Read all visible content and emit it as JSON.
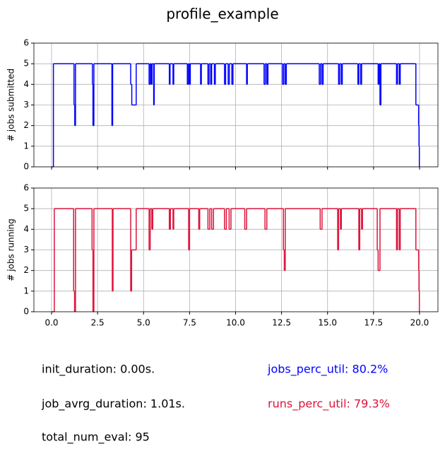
{
  "title": "profile_example",
  "chart_data": [
    {
      "type": "step",
      "ylabel": "# jobs submitted",
      "xlim": [
        -0.96,
        21.0
      ],
      "ylim": [
        0,
        6
      ],
      "xticks": [
        0,
        2.5,
        5,
        7.5,
        10,
        12.5,
        15,
        17.5,
        20
      ],
      "xtick_labels": false,
      "yticks": [
        0,
        1,
        2,
        3,
        4,
        5,
        6
      ],
      "grid": true,
      "color": "#0000ff",
      "x": [
        0,
        0.1,
        1.22,
        1.26,
        1.3,
        2.22,
        2.25,
        2.3,
        3.28,
        3.32,
        4.3,
        4.36,
        4.6,
        5.3,
        5.36,
        5.42,
        5.46,
        5.55,
        5.58,
        6.4,
        6.44,
        6.6,
        6.64,
        7.38,
        7.44,
        7.5,
        7.54,
        8.1,
        8.14,
        8.5,
        8.56,
        8.65,
        8.7,
        8.85,
        8.9,
        9.4,
        9.46,
        9.6,
        9.66,
        9.8,
        9.86,
        10.6,
        10.64,
        11.55,
        11.62,
        11.7,
        11.76,
        12.55,
        12.62,
        12.7,
        12.76,
        14.55,
        14.62,
        14.7,
        14.76,
        15.6,
        15.66,
        15.75,
        15.8,
        16.65,
        16.7,
        16.8,
        16.85,
        17.75,
        17.8,
        17.85,
        17.9,
        18.75,
        18.8,
        18.9,
        18.95,
        19.8,
        19.95,
        19.97,
        19.99,
        20.0
      ],
      "values": [
        0,
        5,
        3,
        2,
        5,
        4,
        2,
        5,
        2,
        5,
        4,
        3,
        5,
        4,
        5,
        4,
        5,
        3,
        5,
        4,
        5,
        4,
        5,
        4,
        5,
        4,
        5,
        4,
        5,
        4,
        5,
        4,
        5,
        4,
        5,
        4,
        5,
        4,
        5,
        4,
        5,
        4,
        5,
        4,
        5,
        4,
        5,
        4,
        5,
        4,
        5,
        4,
        5,
        4,
        5,
        4,
        5,
        4,
        5,
        4,
        5,
        4,
        5,
        4,
        5,
        3,
        5,
        4,
        5,
        4,
        5,
        3,
        2,
        1,
        0,
        0
      ]
    },
    {
      "type": "step",
      "ylabel": "# jobs running",
      "xlim": [
        -0.96,
        21.0
      ],
      "ylim": [
        0,
        6
      ],
      "xticks": [
        {
          "value": 0,
          "label": "0.0"
        },
        2.5,
        {
          "value": 5,
          "label": "5.0"
        },
        7.5,
        {
          "value": 10,
          "label": "10.0"
        },
        12.5,
        {
          "value": 15,
          "label": "15.0"
        },
        17.5,
        {
          "value": 20,
          "label": "20.0"
        }
      ],
      "yticks": [
        0,
        1,
        2,
        3,
        4,
        5,
        6
      ],
      "grid": true,
      "color": "#dc143c",
      "x": [
        0,
        0.15,
        1.2,
        1.25,
        1.3,
        2.2,
        2.25,
        2.3,
        3.3,
        3.34,
        4.3,
        4.35,
        4.6,
        5.3,
        5.36,
        5.45,
        5.5,
        6.4,
        6.46,
        6.6,
        6.64,
        7.45,
        7.5,
        8.0,
        8.05,
        8.5,
        8.6,
        8.7,
        8.8,
        9.4,
        9.5,
        9.65,
        9.75,
        10.5,
        10.6,
        11.6,
        11.7,
        12.6,
        12.65,
        12.7,
        14.6,
        14.7,
        15.55,
        15.6,
        15.7,
        15.75,
        16.7,
        16.75,
        16.85,
        16.9,
        17.7,
        17.75,
        17.85,
        18.75,
        18.8,
        18.9,
        18.95,
        19.8,
        19.95,
        19.97,
        19.99,
        20.0
      ],
      "values": [
        0,
        5,
        1,
        0,
        5,
        3,
        0,
        5,
        1,
        5,
        1,
        3,
        5,
        3,
        5,
        4,
        5,
        4,
        5,
        4,
        5,
        3,
        5,
        4,
        5,
        4,
        5,
        4,
        5,
        4,
        5,
        4,
        5,
        4,
        5,
        4,
        5,
        3,
        2,
        5,
        4,
        5,
        3,
        5,
        4,
        5,
        3,
        5,
        4,
        5,
        3,
        2,
        5,
        3,
        5,
        3,
        5,
        3,
        2,
        1,
        0,
        0
      ]
    }
  ],
  "annotations": [
    {
      "text": "init_duration: 0.00s.",
      "color": "#000000"
    },
    {
      "text": "job_avrg_duration: 1.01s.",
      "color": "#000000"
    },
    {
      "text": "total_num_eval: 95",
      "color": "#000000"
    },
    {
      "text": "jobs_perc_util: 80.2%",
      "color": "#0000ff"
    },
    {
      "text": "runs_perc_util: 79.3%",
      "color": "#dc143c"
    }
  ]
}
